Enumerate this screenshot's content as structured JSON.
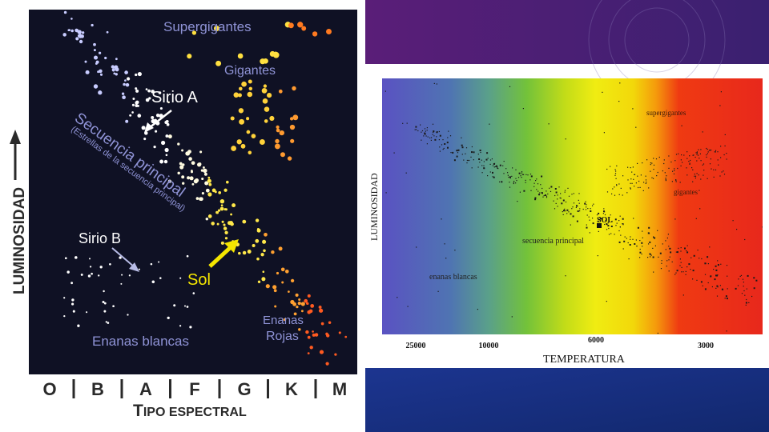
{
  "left_diagram": {
    "y_axis_label": "Luminosidad",
    "x_axis_label_prefix": "T",
    "x_axis_label_rest": "IPO ESPECTRAL",
    "spectral_types": [
      "O",
      "B",
      "A",
      "F",
      "G",
      "K",
      "M"
    ],
    "regions": {
      "supergiants": "Supergigantes",
      "giants": "Gigantes",
      "main_sequence": "Secuencia principal",
      "main_sequence_sub": "(Estrellas de la secuencia principal)",
      "white_dwarfs": "Enanas blancas",
      "red_dwarfs_line1": "Enanas",
      "red_dwarfs_line2": "Rojas"
    },
    "stars": {
      "sirius_a": "Sirio A",
      "sirius_b": "Sirio B",
      "sun": "Sol"
    },
    "colors": {
      "background": "#0f1124",
      "label": "#8f93d6",
      "sun_arrow": "#f5e600"
    }
  },
  "right_diagram": {
    "y_axis_label": "LUMINOSIDAD",
    "x_axis_label": "TEMPERATURA",
    "x_ticks": [
      "25000",
      "10000",
      "6000",
      "3000"
    ],
    "labels": {
      "supergiants": "supergigantes",
      "giants": "gigantes",
      "sun": "SOL",
      "main_sequence": "secuencia principal",
      "white_dwarfs": "enanas blancas"
    }
  }
}
